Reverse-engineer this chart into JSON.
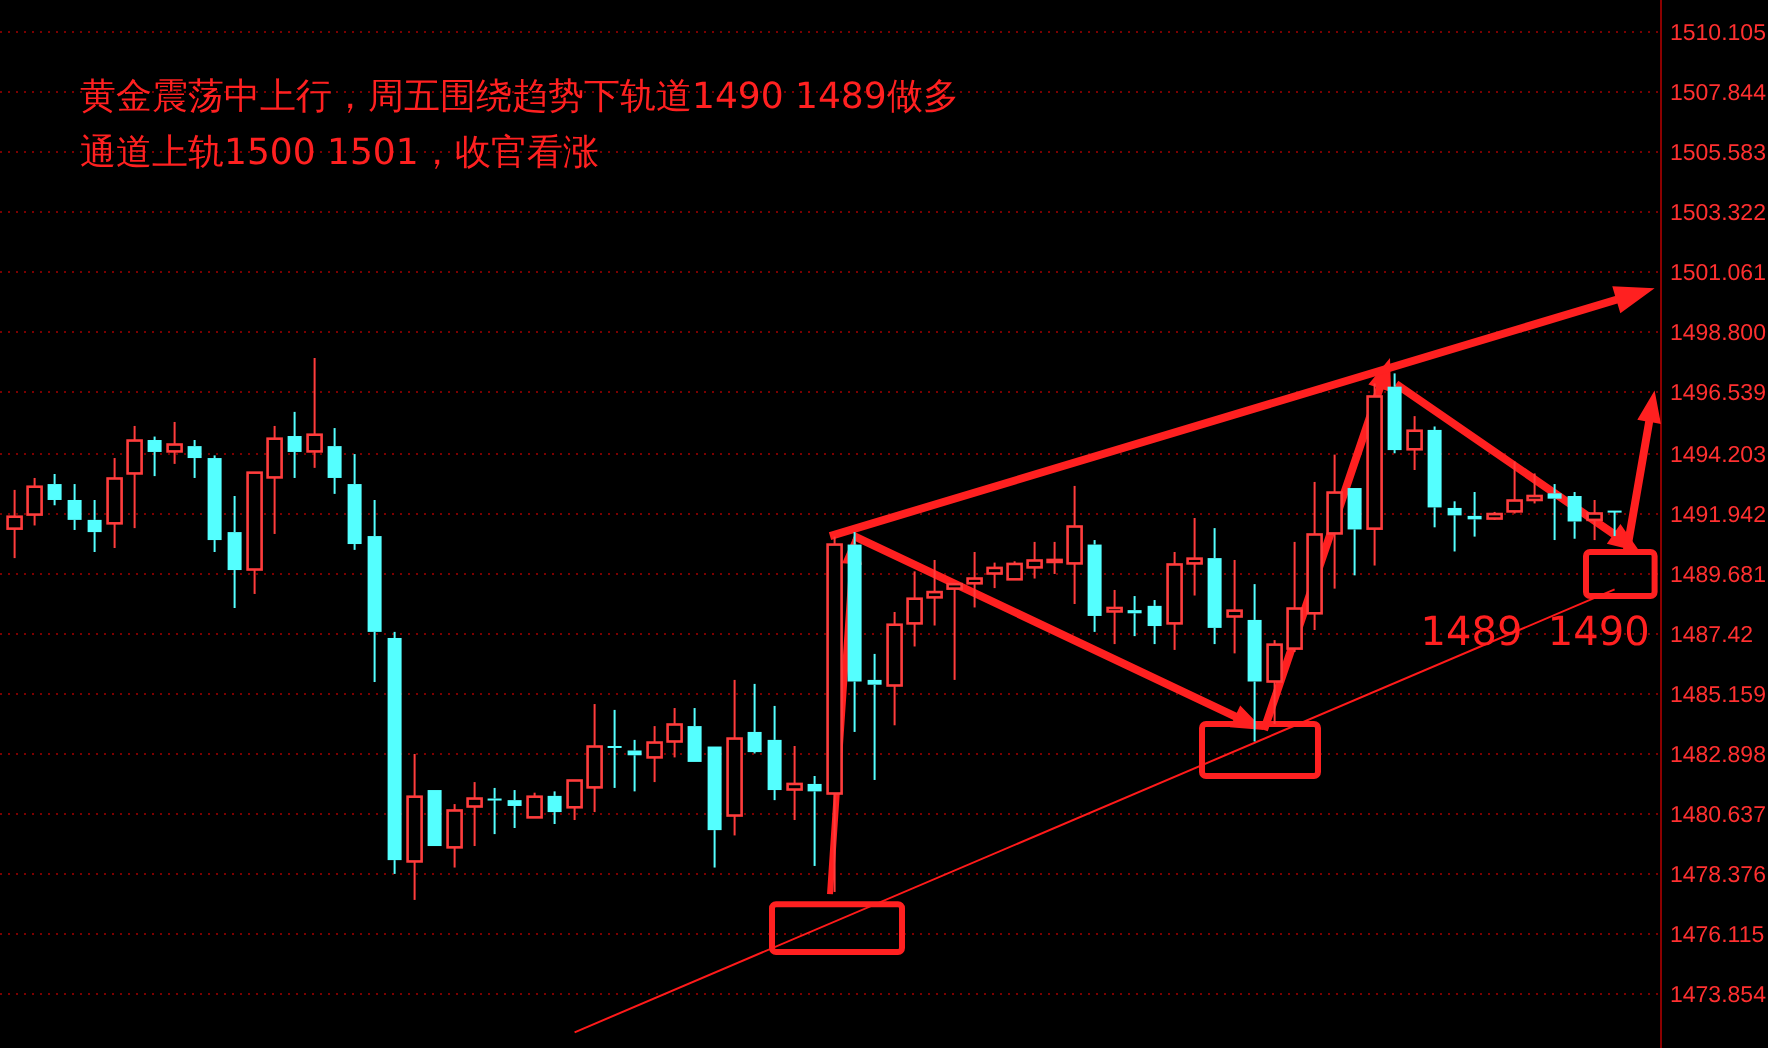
{
  "chart_data": {
    "type": "candlestick",
    "title": "黄金震荡中上行，周五围绕趋势下轨道1490 1489做多",
    "subtitle": "通道上轨1500 1501，收官看涨",
    "annotations": [
      "1489  1490"
    ],
    "categories": [
      null,
      null,
      null,
      null,
      null,
      null,
      null,
      null,
      null,
      null,
      null,
      null,
      null,
      null,
      null,
      null,
      null,
      null,
      null,
      null,
      null,
      null,
      null,
      null,
      null,
      null,
      null,
      null,
      null,
      null,
      null,
      null,
      null,
      null,
      null,
      null,
      null,
      null,
      null,
      null,
      null,
      null,
      null,
      null,
      null,
      null,
      null,
      null,
      null,
      null,
      null,
      null,
      null,
      null,
      null,
      null,
      null,
      null,
      null,
      null,
      null,
      null,
      null,
      null,
      null,
      null,
      null,
      null,
      null,
      null,
      null,
      null,
      null,
      null,
      null,
      null,
      null,
      null,
      null,
      null,
      null
    ],
    "ohlc": [
      [
        1491.39,
        1492.85,
        1490.28,
        1491.84
      ],
      [
        1491.92,
        1493.3,
        1491.51,
        1492.97
      ],
      [
        1493.07,
        1493.45,
        1492.27,
        1492.47
      ],
      [
        1492.47,
        1493.07,
        1491.34,
        1491.72
      ],
      [
        1491.72,
        1492.47,
        1490.51,
        1491.26
      ],
      [
        1491.59,
        1494.05,
        1490.66,
        1493.28
      ],
      [
        1493.47,
        1495.26,
        1491.41,
        1494.71
      ],
      [
        1494.73,
        1494.86,
        1493.37,
        1494.28
      ],
      [
        1494.3,
        1495.41,
        1493.83,
        1494.56
      ],
      [
        1494.5,
        1494.73,
        1493.3,
        1494.05
      ],
      [
        1494.05,
        1494.15,
        1490.51,
        1490.96
      ],
      [
        1491.26,
        1492.62,
        1488.4,
        1489.83
      ],
      [
        1489.85,
        1493.5,
        1488.93,
        1493.5
      ],
      [
        1493.32,
        1495.26,
        1491.19,
        1494.78
      ],
      [
        1494.88,
        1495.79,
        1493.3,
        1494.28
      ],
      [
        1494.3,
        1497.82,
        1493.68,
        1494.93
      ],
      [
        1494.5,
        1495.18,
        1492.7,
        1493.3
      ],
      [
        1493.07,
        1494.2,
        1490.59,
        1490.81
      ],
      [
        1491.11,
        1492.47,
        1485.61,
        1487.5
      ],
      [
        1487.27,
        1487.5,
        1478.38,
        1478.9
      ],
      [
        1478.85,
        1482.9,
        1477.4,
        1481.29
      ],
      [
        1481.54,
        1481.54,
        1479.43,
        1479.43
      ],
      [
        1479.38,
        1481.01,
        1478.62,
        1480.77
      ],
      [
        1480.92,
        1481.84,
        1479.43,
        1481.22
      ],
      [
        1481.22,
        1481.62,
        1479.88,
        1481.16
      ],
      [
        1481.16,
        1481.54,
        1480.11,
        1480.94
      ],
      [
        1480.51,
        1481.44,
        1480.49,
        1481.29
      ],
      [
        1481.32,
        1481.49,
        1480.26,
        1480.71
      ],
      [
        1480.89,
        1481.9,
        1480.41,
        1481.9
      ],
      [
        1481.64,
        1484.78,
        1480.71,
        1483.18
      ],
      [
        1483.2,
        1484.56,
        1481.62,
        1483.15
      ],
      [
        1483.03,
        1483.43,
        1481.49,
        1482.85
      ],
      [
        1482.77,
        1483.95,
        1481.84,
        1483.33
      ],
      [
        1483.37,
        1484.63,
        1482.77,
        1484.01
      ],
      [
        1483.95,
        1484.63,
        1482.6,
        1482.6
      ],
      [
        1483.18,
        1483.18,
        1478.62,
        1480.03
      ],
      [
        1480.58,
        1485.69,
        1479.83,
        1483.48
      ],
      [
        1483.73,
        1485.54,
        1482.92,
        1482.97
      ],
      [
        1483.43,
        1484.71,
        1481.16,
        1481.54
      ],
      [
        1481.56,
        1483.2,
        1480.41,
        1481.77
      ],
      [
        1481.77,
        1482.07,
        1478.68,
        1481.49
      ],
      [
        1481.41,
        1491.09,
        1477.7,
        1490.79
      ],
      [
        1490.79,
        1491.26,
        1483.73,
        1485.63
      ],
      [
        1485.69,
        1486.67,
        1481.92,
        1485.51
      ],
      [
        1485.48,
        1488.25,
        1483.98,
        1487.77
      ],
      [
        1487.82,
        1489.78,
        1486.95,
        1488.75
      ],
      [
        1488.8,
        1490.21,
        1487.74,
        1489.0
      ],
      [
        1489.13,
        1489.3,
        1485.69,
        1489.3
      ],
      [
        1489.33,
        1490.51,
        1488.42,
        1489.51
      ],
      [
        1489.7,
        1490.11,
        1489.15,
        1489.91
      ],
      [
        1489.48,
        1490.16,
        1489.48,
        1490.06
      ],
      [
        1489.93,
        1490.89,
        1489.51,
        1490.19
      ],
      [
        1490.16,
        1490.89,
        1489.68,
        1490.21
      ],
      [
        1490.08,
        1493.0,
        1488.55,
        1491.47
      ],
      [
        1490.79,
        1490.96,
        1487.5,
        1488.1
      ],
      [
        1488.27,
        1489.08,
        1487.04,
        1488.4
      ],
      [
        1488.32,
        1488.85,
        1487.34,
        1488.2
      ],
      [
        1488.48,
        1488.7,
        1487.04,
        1487.72
      ],
      [
        1487.82,
        1490.51,
        1486.82,
        1490.04
      ],
      [
        1490.08,
        1491.79,
        1488.87,
        1490.26
      ],
      [
        1490.28,
        1491.41,
        1487.04,
        1487.65
      ],
      [
        1488.08,
        1490.21,
        1486.69,
        1488.3
      ],
      [
        1487.95,
        1489.3,
        1483.37,
        1485.63
      ],
      [
        1485.63,
        1487.19,
        1484.03,
        1487.02
      ],
      [
        1486.87,
        1490.89,
        1486.74,
        1488.38
      ],
      [
        1488.2,
        1493.15,
        1487.57,
        1491.17
      ],
      [
        1491.21,
        1494.18,
        1489.13,
        1492.75
      ],
      [
        1492.92,
        1492.92,
        1489.63,
        1491.36
      ],
      [
        1491.39,
        1496.86,
        1490.0,
        1496.37
      ],
      [
        1496.74,
        1497.24,
        1494.23,
        1494.35
      ],
      [
        1494.38,
        1495.63,
        1493.6,
        1495.08
      ],
      [
        1495.11,
        1495.24,
        1491.44,
        1492.19
      ],
      [
        1492.17,
        1492.42,
        1490.53,
        1491.89
      ],
      [
        1491.87,
        1492.77,
        1491.09,
        1491.74
      ],
      [
        1491.77,
        1492.02,
        1491.72,
        1491.94
      ],
      [
        1492.04,
        1493.92,
        1491.96,
        1492.45
      ],
      [
        1492.47,
        1493.47,
        1492.34,
        1492.62
      ],
      [
        1492.72,
        1493.07,
        1490.96,
        1492.52
      ],
      [
        1492.62,
        1492.77,
        1491.01,
        1491.66
      ],
      [
        1491.72,
        1492.47,
        1490.96,
        1491.96
      ],
      [
        1492.07,
        1492.07,
        1491.11,
        1492.02
      ]
    ],
    "series": [
      {
        "type": "line",
        "color": "#ff1a1a",
        "values": [
          null,
          null,
          null,
          null,
          null,
          null,
          null,
          null,
          null,
          null,
          null,
          null,
          null,
          null,
          null,
          null,
          null,
          null,
          null,
          null,
          null,
          null,
          null,
          null,
          null,
          null,
          null,
          null,
          1472.41,
          null,
          null,
          null,
          null,
          null,
          null,
          null,
          null,
          null,
          null,
          null,
          null,
          null,
          null,
          null,
          null,
          null,
          null,
          null,
          null,
          null,
          null,
          null,
          null,
          null,
          null,
          null,
          null,
          null,
          null,
          null,
          null,
          null,
          null,
          null,
          null,
          null,
          null,
          null,
          null,
          null,
          null,
          null,
          null,
          null,
          null,
          null,
          null,
          null,
          null,
          null,
          1489.1
        ]
      }
    ],
    "ylim": [
      1471.82,
      1511.31
    ],
    "yticks": [
      1510.105,
      1507.844,
      1505.583,
      1503.322,
      1501.061,
      {
        "value": 1498.8,
        "label": "1498.800"
      },
      1496.539,
      1494.203,
      1491.942,
      1489.681,
      1487.42,
      1485.159,
      1482.898,
      1480.637,
      1478.376,
      1476.115,
      1473.854
    ],
    "grid": "y"
  }
}
